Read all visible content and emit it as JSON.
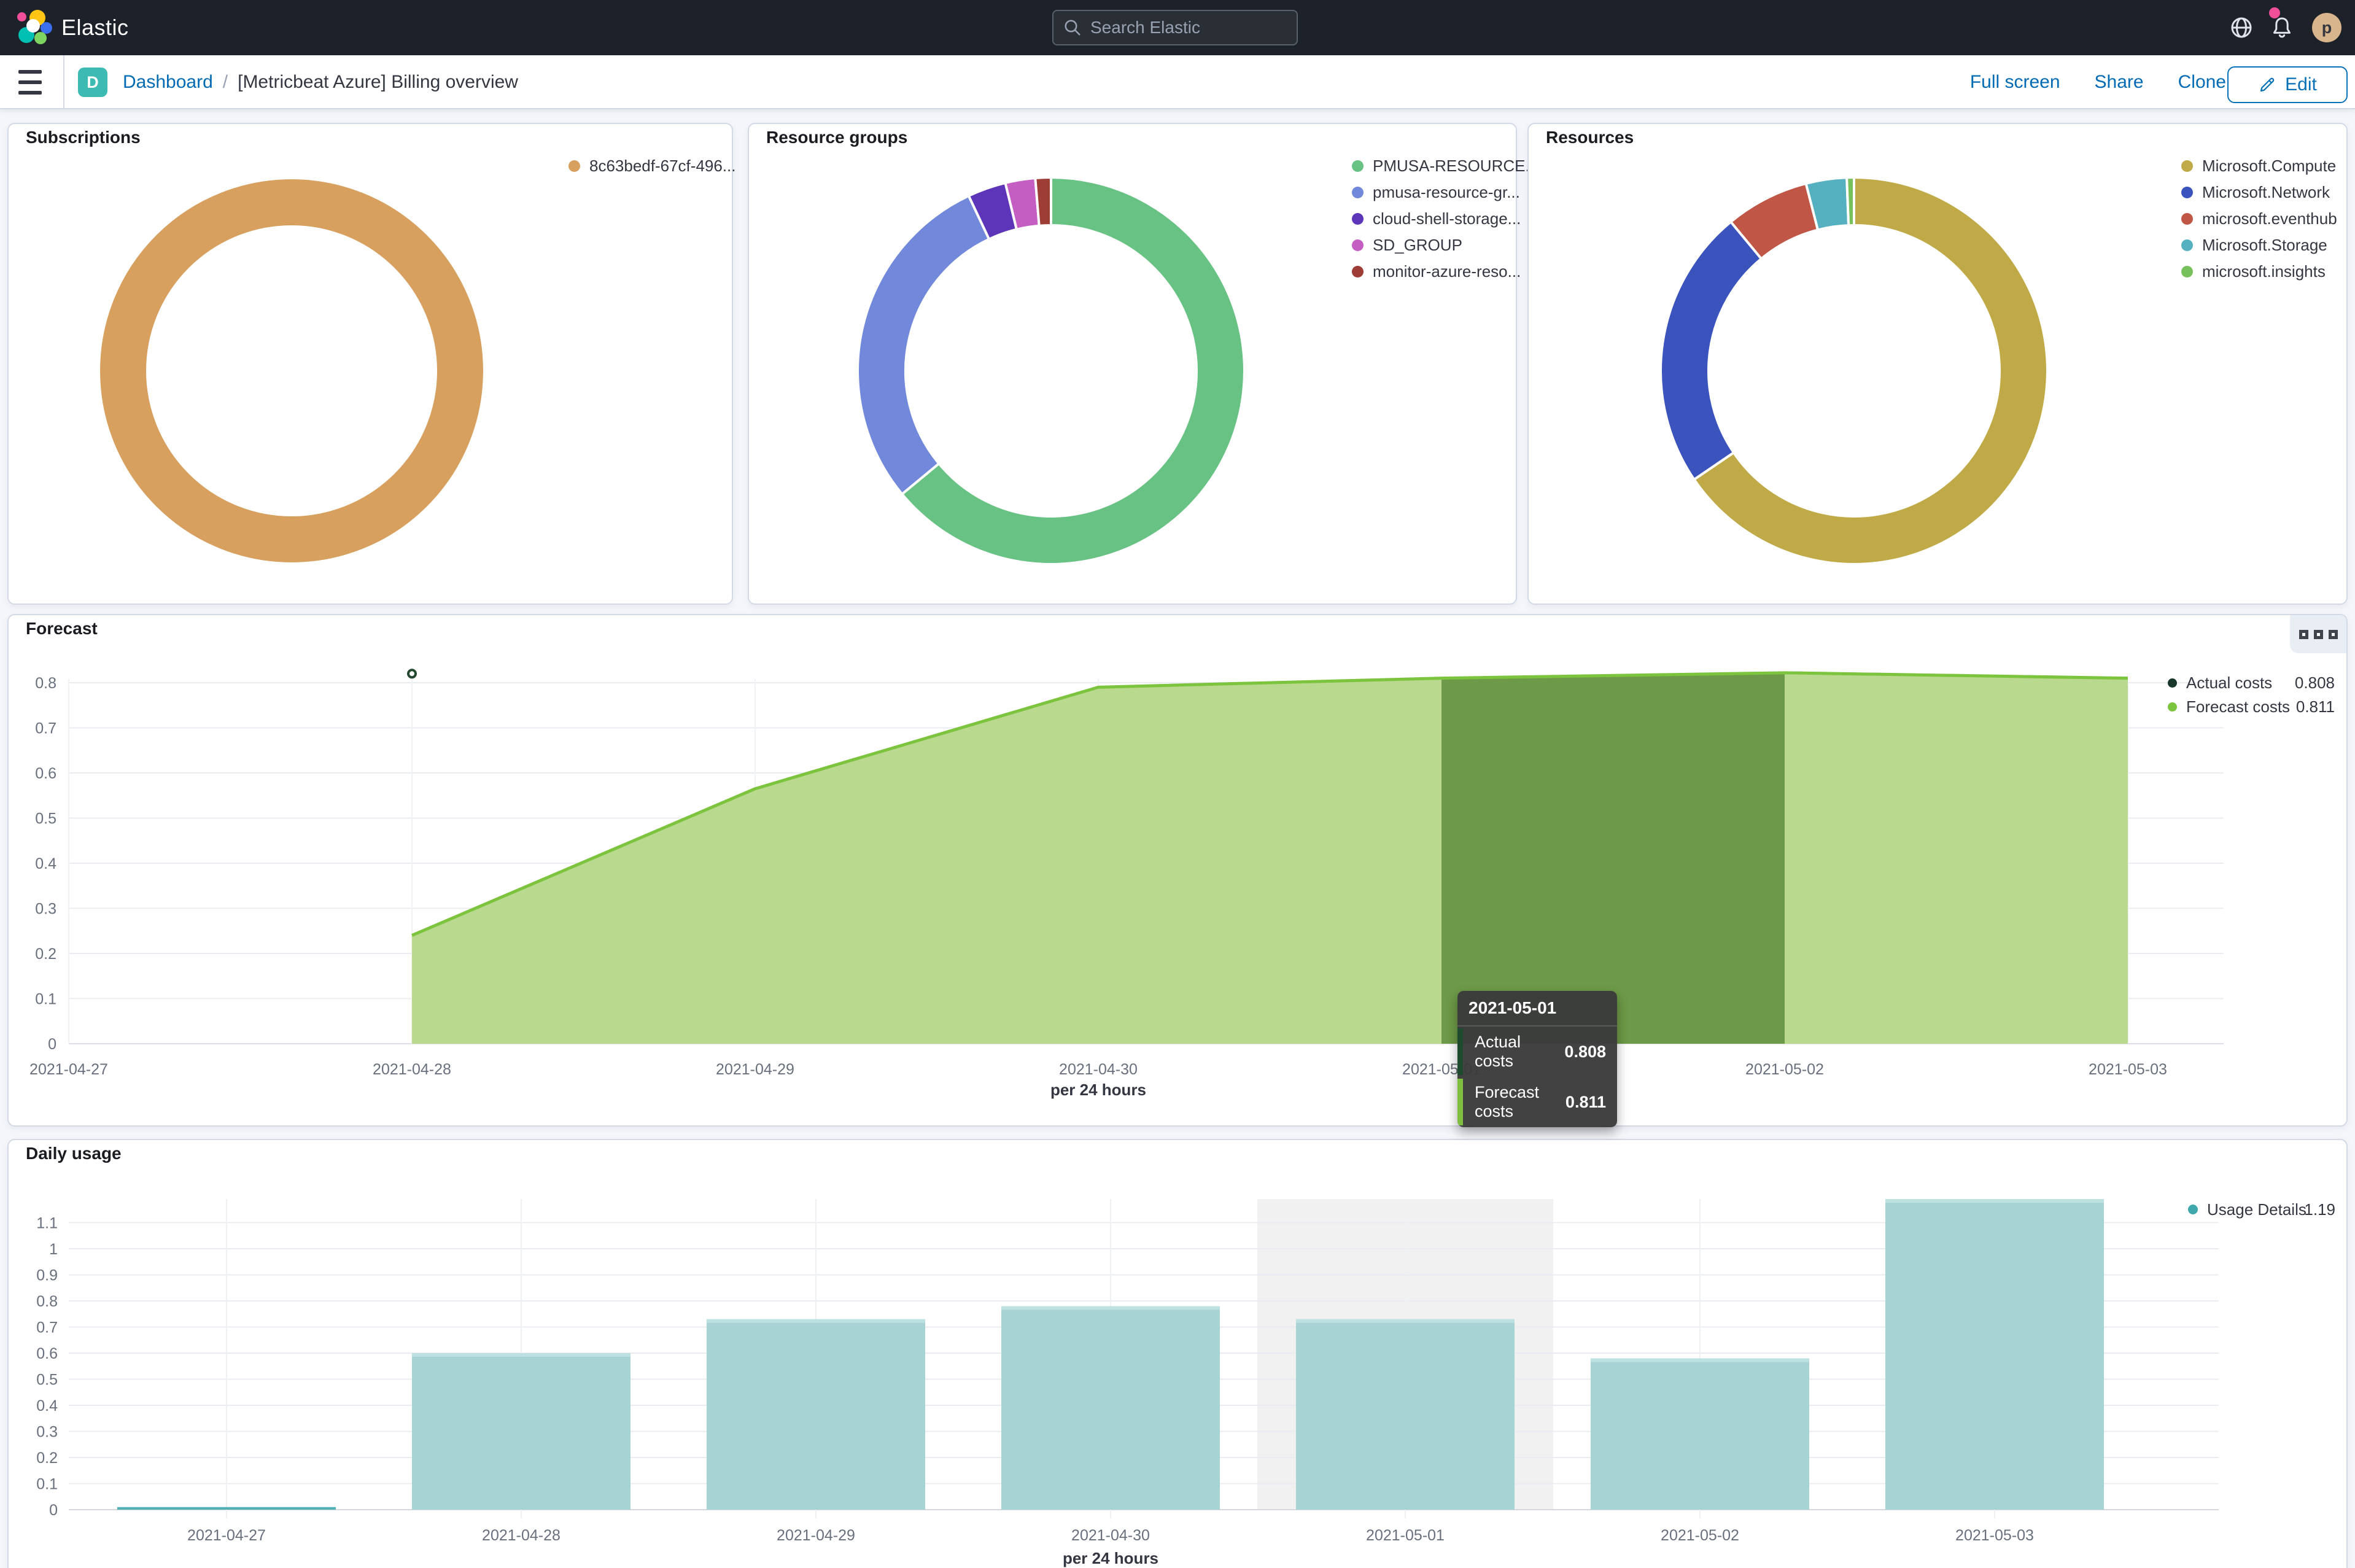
{
  "header": {
    "brand": "Elastic",
    "search_placeholder": "Search Elastic",
    "avatar_initial": "p"
  },
  "breadcrumb": {
    "badge": "D",
    "root": "Dashboard",
    "separator": "/",
    "current": "[Metricbeat Azure] Billing overview",
    "action_fullscreen": "Full screen",
    "action_share": "Share",
    "action_clone": "Clone",
    "edit_label": "Edit"
  },
  "panels": {
    "subscriptions": {
      "title": "Subscriptions"
    },
    "resource_groups": {
      "title": "Resource groups"
    },
    "resources": {
      "title": "Resources"
    },
    "forecast": {
      "title": "Forecast",
      "axis_title": "per 24 hours"
    },
    "daily_usage": {
      "title": "Daily usage",
      "axis_title": "per 24 hours"
    }
  },
  "tooltip": {
    "date": "2021-05-01",
    "rows": [
      {
        "label": "Actual costs",
        "value": "0.808",
        "color": "#1e4a2e"
      },
      {
        "label": "Forecast costs",
        "value": "0.811",
        "color": "#7fbf3f"
      }
    ]
  },
  "chart_data": [
    {
      "id": "subscriptions-donut",
      "type": "pie",
      "labels": [
        "8c63bedf-67cf-496..."
      ],
      "values": [
        100
      ],
      "colors": [
        "#d8a05e"
      ],
      "legend_position": "right"
    },
    {
      "id": "resource-groups-donut",
      "type": "pie",
      "labels": [
        "PMUSA-RESOURCE...",
        "pmusa-resource-gr...",
        "cloud-shell-storage...",
        "SD_GROUP",
        "monitor-azure-reso..."
      ],
      "values": [
        64,
        29,
        3.2,
        2.5,
        1.3
      ],
      "colors": [
        "#68c284",
        "#7288da",
        "#5c35b8",
        "#c45ec2",
        "#9e3c36"
      ],
      "legend_position": "right"
    },
    {
      "id": "resources-donut",
      "type": "pie",
      "labels": [
        "Microsoft.Compute",
        "Microsoft.Network",
        "microsoft.eventhub",
        "Microsoft.Storage",
        "microsoft.insights"
      ],
      "values": [
        65.5,
        23.5,
        7,
        3.4,
        0.6
      ],
      "colors": [
        "#c0aa47",
        "#3b53bd",
        "#c05746",
        "#55b0c0",
        "#77c15c"
      ],
      "legend_position": "right"
    },
    {
      "id": "forecast-area",
      "type": "area",
      "title": "Forecast",
      "xlabel": "per 24 hours",
      "x_categories": [
        "2021-04-27",
        "2021-04-28",
        "2021-04-29",
        "2021-04-30",
        "2021-05-01",
        "2021-05-02",
        "2021-05-03"
      ],
      "yticks": [
        "0",
        "0.1",
        "0.2",
        "0.3",
        "0.4",
        "0.5",
        "0.6",
        "0.7",
        "0.8"
      ],
      "ylim": [
        0,
        0.88
      ],
      "series": [
        {
          "name": "Actual costs",
          "color": "#17382a",
          "legend_value": "0.808",
          "points": [
            [
              "2021-04-28",
              0.82
            ]
          ]
        },
        {
          "name": "Forecast costs",
          "color": "#7cc33e",
          "legend_value": "0.811",
          "fill": "#b9d98e",
          "points": [
            [
              "2021-04-28",
              0.24
            ],
            [
              "2021-04-29",
              0.565
            ],
            [
              "2021-04-30",
              0.79
            ],
            [
              "2021-05-01",
              0.81
            ],
            [
              "2021-05-02",
              0.822
            ],
            [
              "2021-05-03",
              0.81
            ]
          ]
        }
      ],
      "highlight_band": {
        "from": "2021-05-01",
        "to": "2021-05-02",
        "fill": "#6d9a48"
      },
      "grid": true,
      "legend_position": "top-right"
    },
    {
      "id": "daily-usage-bars",
      "type": "bar",
      "title": "Daily usage",
      "xlabel": "per 24 hours",
      "categories": [
        "2021-04-27",
        "2021-04-28",
        "2021-04-29",
        "2021-04-30",
        "2021-05-01",
        "2021-05-02",
        "2021-05-03"
      ],
      "values": [
        0.01,
        0.6,
        0.73,
        0.78,
        0.73,
        0.58,
        1.19
      ],
      "yticks": [
        "0",
        "0.1",
        "0.2",
        "0.3",
        "0.4",
        "0.5",
        "0.6",
        "0.7",
        "0.8",
        "0.9",
        "1",
        "1.1"
      ],
      "ylim": [
        0,
        1.19
      ],
      "bar_color": "#a7d3d5",
      "bar_cap_color": "#bde0e1",
      "small_bar_color": "#54b2b5",
      "highlight_category": "2021-05-01",
      "highlight_fill": "#f1f1f1",
      "legend": {
        "name": "Usage Details",
        "value": "1.19",
        "color": "#3fa8ac"
      },
      "grid": true,
      "legend_position": "top-right"
    }
  ]
}
